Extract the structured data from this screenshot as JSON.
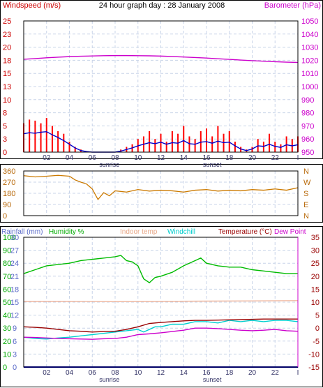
{
  "title": "24 hour graph day : 28 January 2008",
  "chart_data": [
    {
      "type": "line",
      "panel": "wind-barometer",
      "legend_left": "Windspeed (m/s)",
      "legend_right": "Barometer (hPa)",
      "x_ticks": [
        "02",
        "04",
        "06",
        "08",
        "10",
        "12",
        "14",
        "16",
        "18",
        "20",
        "22",
        "I"
      ],
      "x_range_hours": [
        0,
        24
      ],
      "sunrise_label": "sunrise",
      "sunset_label": "sunset",
      "y_left_ticks": [
        "0",
        "3",
        "5",
        "8",
        "10",
        "13",
        "15",
        "18",
        "20",
        "23",
        "25"
      ],
      "y_left_range": [
        0,
        25
      ],
      "y_right_ticks": [
        "950",
        "960",
        "970",
        "980",
        "990",
        "1000",
        "1010",
        "1020",
        "1030",
        "1040",
        "1050"
      ],
      "y_right_range": [
        950,
        1050
      ],
      "grid": true,
      "series": [
        {
          "name": "Barometer (hPa)",
          "axis": "right",
          "color": "#cc00cc",
          "x": [
            0,
            1,
            2,
            3,
            4,
            5,
            6,
            7,
            8,
            9,
            10,
            11,
            12,
            13,
            14,
            15,
            16,
            17,
            18,
            19,
            20,
            21,
            22,
            23,
            24
          ],
          "values": [
            1020.8,
            1021.3,
            1021.9,
            1022.4,
            1022.8,
            1023.1,
            1023.3,
            1023.5,
            1023.6,
            1023.6,
            1023.5,
            1023.4,
            1023.2,
            1022.9,
            1022.5,
            1022.1,
            1021.7,
            1021.2,
            1020.7,
            1020.2,
            1019.7,
            1019.3,
            1018.9,
            1018.6,
            1018.4
          ]
        },
        {
          "name": "Windspeed (m/s)",
          "axis": "left",
          "color": "#ff0000",
          "style": "bars",
          "x": [
            0,
            0.5,
            1,
            1.5,
            2,
            2.5,
            3,
            3.5,
            4,
            4.5,
            5,
            5.5,
            6,
            7,
            8,
            8.5,
            9,
            9.5,
            10,
            10.5,
            11,
            11.5,
            12,
            12.5,
            13,
            13.5,
            14,
            14.5,
            15,
            15.5,
            16,
            16.5,
            17,
            17.5,
            18,
            18.5,
            19,
            19.5,
            20,
            20.5,
            21,
            21.5,
            22,
            22.5,
            23,
            23.5,
            24
          ],
          "values": [
            5.5,
            6.2,
            6,
            5.5,
            6.5,
            5,
            4,
            3.5,
            2,
            1,
            0.5,
            0.2,
            0,
            0,
            0,
            0.5,
            1,
            1.5,
            2.5,
            3,
            4,
            2.5,
            3.5,
            2,
            4,
            3.5,
            5,
            3,
            2.5,
            4,
            4.5,
            3,
            5,
            3.5,
            4,
            2,
            1,
            0.5,
            1,
            2.5,
            2,
            3.5,
            2,
            1.5,
            3,
            2.5,
            3
          ]
        },
        {
          "name": "Wind average (m/s)",
          "axis": "left",
          "color": "#0000cc",
          "x": [
            0,
            0.5,
            1,
            1.5,
            2,
            2.5,
            3,
            3.5,
            4,
            4.5,
            5,
            5.5,
            6,
            7,
            8,
            8.5,
            9,
            9.5,
            10,
            10.5,
            11,
            11.5,
            12,
            12.5,
            13,
            13.5,
            14,
            14.5,
            15,
            15.5,
            16,
            16.5,
            17,
            17.5,
            18,
            18.5,
            19,
            19.5,
            20,
            20.5,
            21,
            21.5,
            22,
            22.5,
            23,
            23.5,
            24
          ],
          "values": [
            3.5,
            3.7,
            3.6,
            3.8,
            3.9,
            3.3,
            2.8,
            2.2,
            1.5,
            0.8,
            0.3,
            0.1,
            0,
            0,
            0,
            0.2,
            0.5,
            0.8,
            1.2,
            1.5,
            1.8,
            1.6,
            1.9,
            1.5,
            1.8,
            1.7,
            2.2,
            1.6,
            1.5,
            1.9,
            2,
            1.7,
            2.1,
            1.8,
            1.9,
            1.2,
            0.6,
            0.3,
            0.6,
            1.2,
            1.1,
            1.5,
            1.1,
            0.9,
            1.4,
            1.2,
            1.4
          ]
        }
      ]
    },
    {
      "type": "line",
      "panel": "wind-direction",
      "y_left_ticks": [
        "0",
        "90",
        "180",
        "270",
        "360"
      ],
      "y_left_range": [
        0,
        360
      ],
      "y_right_ticks": [
        "N",
        "E",
        "S",
        "W",
        "N"
      ],
      "grid": true,
      "series": [
        {
          "name": "Wind direction (deg)",
          "color": "#cc7a00",
          "x": [
            0,
            1,
            2,
            3,
            4,
            4.5,
            5,
            5.5,
            6,
            6.5,
            7,
            7.5,
            8,
            9,
            10,
            11,
            12,
            13,
            14,
            15,
            16,
            17,
            18,
            19,
            20,
            21,
            22,
            23,
            24
          ],
          "values": [
            322,
            312,
            318,
            325,
            318,
            288,
            270,
            255,
            215,
            130,
            185,
            160,
            200,
            190,
            210,
            198,
            205,
            200,
            190,
            205,
            210,
            198,
            205,
            200,
            210,
            205,
            215,
            205,
            225
          ]
        }
      ]
    },
    {
      "type": "line",
      "panel": "temperature-humidity",
      "legends": [
        "Rainfall (mm)",
        "Humidity %",
        "Indoor temp",
        "Windchill",
        "Temperature (°C)",
        "Dew Point"
      ],
      "y_left_humidity_ticks": [
        "0",
        "10",
        "20",
        "30",
        "40",
        "50",
        "60",
        "70",
        "80",
        "90",
        "100"
      ],
      "y_left_humidity_range": [
        0,
        100
      ],
      "y_left_rain_ticks": [
        "0",
        "3",
        "6",
        "9",
        "12",
        "15",
        "18",
        "21",
        "24",
        "27",
        "30"
      ],
      "y_left_rain_range": [
        0,
        30
      ],
      "y_right_ticks": [
        "-15",
        "-10",
        "-5",
        "0",
        "5",
        "10",
        "15",
        "20",
        "25",
        "30",
        "35"
      ],
      "y_right_range": [
        -15,
        35
      ],
      "grid": true,
      "series": [
        {
          "name": "Humidity %",
          "axis": "humidity",
          "color": "#00bb00",
          "x": [
            0,
            1,
            2,
            3,
            4,
            5,
            6,
            7,
            8,
            8.5,
            9,
            9.5,
            10,
            10.5,
            11,
            11.5,
            12,
            13,
            14,
            15,
            15.5,
            16,
            17,
            18,
            19,
            20,
            21,
            22,
            23,
            24
          ],
          "values": [
            72,
            75,
            78,
            79,
            80,
            82,
            83,
            84,
            85,
            86,
            82,
            81,
            78,
            68,
            65,
            69,
            70,
            73,
            78,
            82,
            84,
            80,
            78,
            77,
            77,
            75,
            74,
            73,
            72,
            72
          ]
        },
        {
          "name": "Indoor temp",
          "axis": "temp",
          "color": "#f0b8a0",
          "x": [
            0,
            4,
            8,
            12,
            16,
            20,
            24
          ],
          "values": [
            10.3,
            10.3,
            10.2,
            10.3,
            10.4,
            10.5,
            10.6
          ]
        },
        {
          "name": "Windchill",
          "axis": "temp",
          "color": "#00d0d0",
          "x": [
            0,
            1,
            2,
            3,
            4,
            5,
            6,
            7,
            8,
            9,
            10,
            10.5,
            11,
            11.5,
            12,
            13,
            14,
            15,
            16,
            17,
            18,
            19,
            20,
            21,
            22,
            23,
            24
          ],
          "values": [
            -3.5,
            -4,
            -4.2,
            -3.8,
            -3.5,
            -3,
            -2.5,
            -2,
            -1.5,
            -1,
            -0.5,
            -1.5,
            -0.5,
            0.5,
            0.5,
            1.5,
            1.5,
            2.5,
            2.5,
            2,
            3,
            2.5,
            3,
            2.5,
            3,
            3,
            2.5
          ]
        },
        {
          "name": "Temperature (°C)",
          "axis": "temp",
          "color": "#990000",
          "x": [
            0,
            1,
            2,
            3,
            4,
            5,
            6,
            7,
            8,
            9,
            10,
            11,
            12,
            13,
            14,
            15,
            16,
            17,
            18,
            19,
            20,
            21,
            22,
            23,
            24
          ],
          "values": [
            0.5,
            0.3,
            0,
            -0.5,
            -1,
            -1.2,
            -1.5,
            -1.3,
            -1.2,
            -0.5,
            0.5,
            1.8,
            2.2,
            2.5,
            2.8,
            3,
            3,
            3.1,
            3.2,
            3.3,
            3.4,
            3.5,
            3.5,
            3.5,
            3.5
          ]
        },
        {
          "name": "Dew Point",
          "axis": "temp",
          "color": "#cc00cc",
          "x": [
            0,
            1,
            2,
            3,
            4,
            5,
            6,
            7,
            8,
            9,
            10,
            11,
            12,
            13,
            14,
            15,
            16,
            17,
            18,
            19,
            20,
            21,
            22,
            23,
            24
          ],
          "values": [
            -3.5,
            -3.6,
            -3.8,
            -4,
            -4.1,
            -4.2,
            -4.3,
            -4.1,
            -4,
            -3.5,
            -2.5,
            -2.2,
            -1.8,
            -1.3,
            -0.8,
            0,
            0,
            -0.2,
            -0.5,
            -0.8,
            -1,
            -0.8,
            -0.5,
            -1,
            -1.2
          ]
        },
        {
          "name": "Rainfall (mm)",
          "axis": "rain",
          "color": "#0000cc",
          "x": [
            0,
            24
          ],
          "values": [
            0,
            0
          ]
        }
      ]
    }
  ]
}
